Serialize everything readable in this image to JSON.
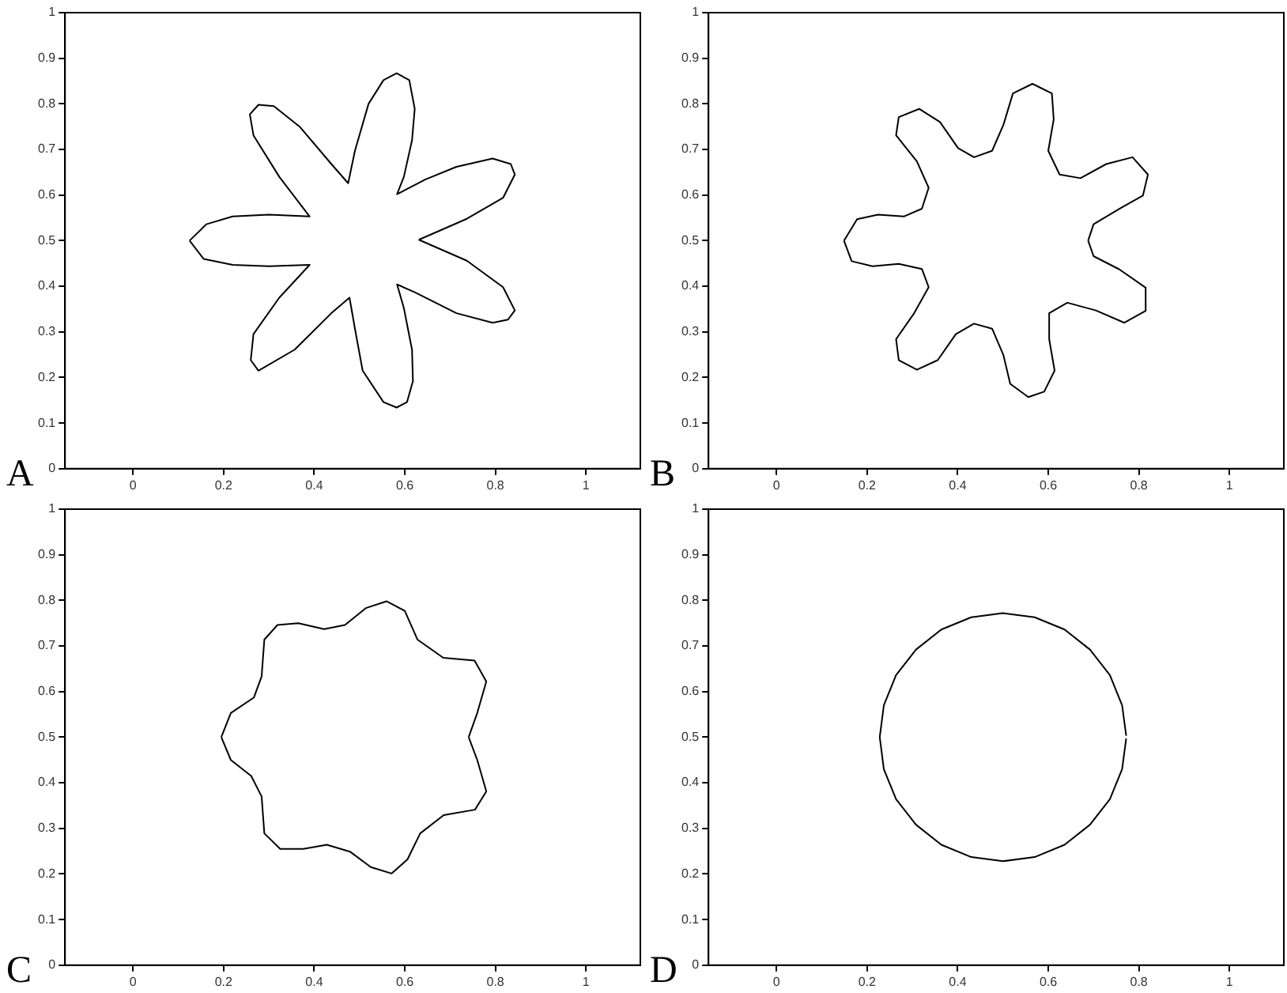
{
  "chart_data": [
    {
      "type": "line",
      "annotations": [
        "A"
      ],
      "xlim": [
        -0.15,
        1.12
      ],
      "ylim": [
        0,
        1
      ],
      "xticks": [
        0,
        0.2,
        0.4,
        0.6,
        0.8,
        1
      ],
      "yticks": [
        0,
        0.1,
        0.2,
        0.3,
        0.4,
        0.5,
        0.6,
        0.7,
        0.8,
        0.9,
        1
      ],
      "grid": false,
      "legend": false,
      "series": [
        {
          "color": "#000000",
          "x": [
            0.125,
            0.162,
            0.22,
            0.3,
            0.39,
            0.323,
            0.266,
            0.258,
            0.277,
            0.311,
            0.369,
            0.438,
            0.475,
            0.49,
            0.52,
            0.553,
            0.582,
            0.61,
            0.622,
            0.616,
            0.598,
            0.583,
            0.645,
            0.714,
            0.794,
            0.834,
            0.843,
            0.817,
            0.737,
            0.631
          ],
          "values": [
            0.5,
            0.536,
            0.553,
            0.557,
            0.553,
            0.64,
            0.731,
            0.777,
            0.798,
            0.795,
            0.749,
            0.668,
            0.626,
            0.697,
            0.8,
            0.852,
            0.867,
            0.852,
            0.789,
            0.72,
            0.64,
            0.602,
            0.634,
            0.662,
            0.68,
            0.668,
            0.645,
            0.594,
            0.548,
            0.502
          ]
        },
        {
          "color": "#000000",
          "x": [
            0.631,
            0.737,
            0.817,
            0.843,
            0.828,
            0.794,
            0.714,
            0.622,
            0.583,
            0.598,
            0.616,
            0.618,
            0.605,
            0.582,
            0.553,
            0.507,
            0.49,
            0.478,
            0.438,
            0.357,
            0.277,
            0.26,
            0.266,
            0.323,
            0.39,
            0.3,
            0.22,
            0.156,
            0.125
          ],
          "values": [
            0.502,
            0.456,
            0.398,
            0.347,
            0.327,
            0.32,
            0.341,
            0.387,
            0.404,
            0.352,
            0.261,
            0.192,
            0.146,
            0.134,
            0.146,
            0.215,
            0.307,
            0.375,
            0.341,
            0.261,
            0.215,
            0.238,
            0.295,
            0.375,
            0.447,
            0.444,
            0.447,
            0.46,
            0.5
          ]
        }
      ]
    },
    {
      "type": "line",
      "annotations": [
        "B"
      ],
      "xlim": [
        -0.15,
        1.12
      ],
      "ylim": [
        0,
        1
      ],
      "xticks": [
        0,
        0.2,
        0.4,
        0.6,
        0.8,
        1
      ],
      "yticks": [
        0,
        0.1,
        0.2,
        0.3,
        0.4,
        0.5,
        0.6,
        0.7,
        0.8,
        0.9,
        1
      ],
      "grid": false,
      "legend": false,
      "series": [
        {
          "color": "#000000",
          "x": [
            0.149,
            0.178,
            0.224,
            0.281,
            0.321,
            0.336,
            0.31,
            0.264,
            0.27,
            0.315,
            0.361,
            0.401,
            0.436,
            0.476,
            0.501,
            0.522,
            0.565,
            0.608,
            0.612,
            0.6,
            0.625,
            0.671,
            0.728,
            0.786,
            0.82,
            0.809,
            0.757,
            0.7,
            0.688
          ],
          "values": [
            0.5,
            0.547,
            0.557,
            0.553,
            0.57,
            0.616,
            0.674,
            0.731,
            0.771,
            0.789,
            0.76,
            0.703,
            0.683,
            0.697,
            0.754,
            0.823,
            0.844,
            0.823,
            0.766,
            0.697,
            0.645,
            0.637,
            0.668,
            0.683,
            0.645,
            0.599,
            0.57,
            0.536,
            0.5
          ]
        },
        {
          "color": "#000000",
          "x": [
            0.688,
            0.7,
            0.757,
            0.815,
            0.815,
            0.768,
            0.705,
            0.642,
            0.602,
            0.602,
            0.614,
            0.591,
            0.556,
            0.516,
            0.501,
            0.476,
            0.436,
            0.396,
            0.356,
            0.31,
            0.27,
            0.264,
            0.304,
            0.336,
            0.321,
            0.27,
            0.212,
            0.166,
            0.149
          ],
          "values": [
            0.5,
            0.466,
            0.437,
            0.397,
            0.346,
            0.32,
            0.347,
            0.364,
            0.341,
            0.284,
            0.215,
            0.169,
            0.157,
            0.186,
            0.249,
            0.307,
            0.318,
            0.295,
            0.238,
            0.217,
            0.238,
            0.284,
            0.341,
            0.398,
            0.438,
            0.449,
            0.444,
            0.455,
            0.5
          ]
        }
      ]
    },
    {
      "type": "line",
      "annotations": [
        "C"
      ],
      "xlim": [
        -0.15,
        1.12
      ],
      "ylim": [
        0,
        1
      ],
      "xticks": [
        0,
        0.2,
        0.4,
        0.6,
        0.8,
        1
      ],
      "yticks": [
        0,
        0.1,
        0.2,
        0.3,
        0.4,
        0.5,
        0.6,
        0.7,
        0.8,
        0.9,
        1
      ],
      "grid": false,
      "legend": false,
      "series": [
        {
          "color": "#000000",
          "x": [
            0.195,
            0.216,
            0.267,
            0.284,
            0.29,
            0.319,
            0.365,
            0.422,
            0.468,
            0.514,
            0.56,
            0.6,
            0.628,
            0.685,
            0.754,
            0.78,
            0.76,
            0.741
          ],
          "values": [
            0.5,
            0.553,
            0.587,
            0.633,
            0.714,
            0.746,
            0.75,
            0.737,
            0.746,
            0.783,
            0.798,
            0.777,
            0.714,
            0.674,
            0.668,
            0.622,
            0.553,
            0.5
          ]
        },
        {
          "color": "#000000",
          "x": [
            0.741,
            0.76,
            0.78,
            0.755,
            0.686,
            0.634,
            0.606,
            0.571,
            0.525,
            0.479,
            0.428,
            0.376,
            0.325,
            0.29,
            0.284,
            0.261,
            0.216,
            0.195
          ],
          "values": [
            0.5,
            0.45,
            0.381,
            0.341,
            0.329,
            0.289,
            0.232,
            0.201,
            0.215,
            0.249,
            0.264,
            0.255,
            0.255,
            0.289,
            0.37,
            0.415,
            0.45,
            0.5
          ]
        }
      ]
    },
    {
      "type": "line",
      "annotations": [
        "D"
      ],
      "xlim": [
        -0.15,
        1.12
      ],
      "ylim": [
        0,
        1
      ],
      "xticks": [
        0,
        0.2,
        0.4,
        0.6,
        0.8,
        1
      ],
      "yticks": [
        0,
        0.1,
        0.2,
        0.3,
        0.4,
        0.5,
        0.6,
        0.7,
        0.8,
        0.9,
        1
      ],
      "grid": false,
      "legend": false,
      "series": [
        {
          "color": "#000000",
          "x": [
            0.772,
            0.763,
            0.736,
            0.692,
            0.636,
            0.57,
            0.5,
            0.43,
            0.364,
            0.308,
            0.264,
            0.237,
            0.228,
            0.237,
            0.264,
            0.308,
            0.364,
            0.43,
            0.5,
            0.57,
            0.636,
            0.692,
            0.736,
            0.763,
            0.772
          ],
          "values": [
            0.503,
            0.57,
            0.636,
            0.692,
            0.736,
            0.763,
            0.772,
            0.763,
            0.736,
            0.692,
            0.636,
            0.57,
            0.5,
            0.43,
            0.364,
            0.308,
            0.264,
            0.237,
            0.228,
            0.237,
            0.264,
            0.308,
            0.364,
            0.43,
            0.497
          ]
        }
      ]
    }
  ]
}
